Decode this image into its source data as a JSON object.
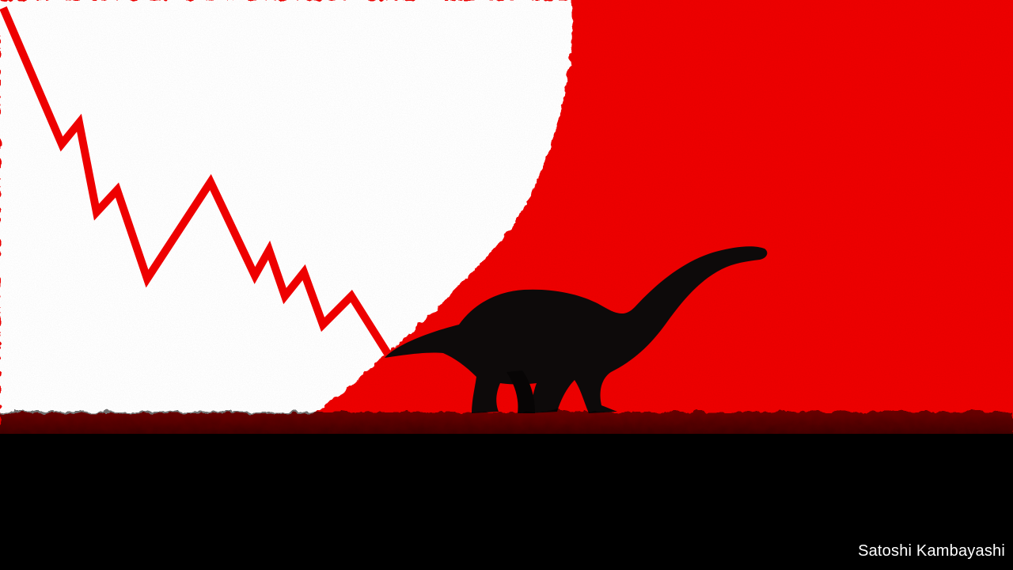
{
  "image": {
    "subject": "dinosaur-silhouette-with-falling-zigzag-line",
    "colors": {
      "red": "#ee0000",
      "white": "#ffffff",
      "black": "#000000",
      "silhouette": "#0d0a0a"
    }
  },
  "credit": {
    "text": "Satoshi Kambayashi"
  }
}
